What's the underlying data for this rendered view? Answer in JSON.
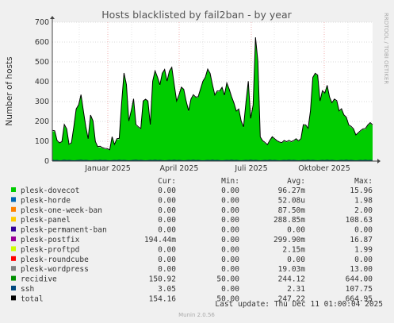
{
  "chart_data": {
    "type": "line",
    "title": "Hosts blacklisted by fail2ban - by year",
    "ylabel": "Number of hosts",
    "ylim": [
      0,
      700
    ],
    "yticks": [
      0,
      100,
      200,
      300,
      400,
      500,
      600,
      700
    ],
    "xlabels": [
      "Januar 2025",
      "April 2025",
      "Juli 2025",
      "Oktober 2025"
    ],
    "grid": true,
    "series": [
      {
        "name": "recidive",
        "color": "#00cc00",
        "fill": true,
        "values": [
          150,
          150,
          100,
          90,
          95,
          180,
          160,
          80,
          90,
          170,
          260,
          280,
          330,
          250,
          170,
          110,
          230,
          200,
          95,
          70,
          70,
          65,
          60,
          60,
          55,
          120,
          80,
          110,
          110,
          290,
          440,
          380,
          200,
          250,
          310,
          180,
          170,
          160,
          300,
          310,
          300,
          180,
          400,
          450,
          420,
          380,
          440,
          460,
          400,
          450,
          470,
          380,
          300,
          330,
          370,
          360,
          300,
          250,
          310,
          330,
          320,
          320,
          360,
          400,
          420,
          460,
          440,
          380,
          330,
          350,
          350,
          370,
          330,
          390,
          360,
          320,
          290,
          250,
          260,
          200,
          170,
          290,
          400,
          210,
          280,
          620,
          500,
          120,
          100,
          90,
          80,
          100,
          120,
          110,
          100,
          95,
          90,
          100,
          95,
          100,
          95,
          100,
          110,
          100,
          110,
          180,
          180,
          160,
          250,
          420,
          440,
          430,
          300,
          350,
          340,
          380,
          320,
          290,
          310,
          300,
          250,
          260,
          230,
          220,
          180,
          170,
          160,
          130,
          140,
          150,
          160,
          160,
          180,
          190,
          180
        ]
      },
      {
        "name": "ssh",
        "color": "#003366",
        "fill": false,
        "values": [
          5,
          3,
          4,
          2,
          3,
          5,
          3,
          4,
          3,
          2,
          3,
          4,
          5,
          3,
          4,
          3,
          2,
          3,
          4,
          3,
          5,
          3,
          4,
          3,
          2,
          3,
          4,
          3,
          5,
          3,
          4,
          3,
          2,
          3,
          4,
          5,
          3,
          4,
          3,
          2,
          3,
          4,
          3,
          5,
          3,
          4,
          3,
          2,
          3,
          4,
          3,
          5,
          3,
          4,
          3,
          2,
          3,
          4,
          3,
          5,
          3,
          4,
          3,
          2,
          3,
          4,
          3,
          5,
          3,
          4,
          3,
          2,
          3,
          4,
          3,
          5,
          3,
          4,
          3,
          2,
          3,
          4,
          3,
          5,
          3,
          4,
          3,
          2,
          3,
          4,
          3,
          5,
          3,
          4,
          3,
          2,
          3,
          4,
          3,
          5,
          3,
          4,
          3,
          2,
          3,
          4,
          3,
          5,
          3,
          4,
          3,
          2,
          3,
          4,
          3,
          5,
          3,
          4,
          3,
          2,
          3,
          4,
          3,
          5,
          3,
          4,
          3,
          2,
          3,
          4,
          3,
          5,
          3,
          4,
          3
        ]
      },
      {
        "name": "total",
        "color": "#000000",
        "fill": false,
        "values": [
          155,
          153,
          104,
          92,
          98,
          185,
          163,
          84,
          93,
          172,
          263,
          284,
          335,
          253,
          174,
          113,
          232,
          203,
          99,
          73,
          75,
          68,
          64,
          63,
          57,
          123,
          84,
          113,
          115,
          293,
          444,
          385,
          202,
          253,
          314,
          185,
          173,
          164,
          303,
          312,
          303,
          184,
          403,
          455,
          423,
          384,
          443,
          462,
          403,
          454,
          473,
          385,
          303,
          334,
          373,
          362,
          303,
          254,
          313,
          335,
          323,
          324,
          363,
          402,
          423,
          464,
          443,
          385,
          333,
          354,
          353,
          372,
          333,
          394,
          363,
          325,
          293,
          252,
          263,
          202,
          173,
          294,
          403,
          215,
          283,
          624,
          503,
          122,
          103,
          94,
          83,
          105,
          123,
          113,
          103,
          97,
          93,
          104,
          98,
          105,
          98,
          104,
          113,
          102,
          113,
          184,
          183,
          165,
          253,
          422,
          443,
          434,
          303,
          355,
          343,
          382,
          323,
          294,
          313,
          305,
          253,
          264,
          233,
          222,
          183,
          175,
          163,
          132,
          143,
          154,
          163,
          165,
          183,
          194,
          183
        ]
      }
    ]
  },
  "legend": {
    "header": {
      "cur": "Cur:",
      "min": "Min:",
      "avg": "Avg:",
      "max": "Max:"
    },
    "rows": [
      {
        "name": "plesk-dovecot",
        "color": "#00cc00",
        "cur": "0.00",
        "min": "0.00",
        "avg": "96.27m",
        "max": "15.96"
      },
      {
        "name": "plesk-horde",
        "color": "#0066b3",
        "cur": "0.00",
        "min": "0.00",
        "avg": "52.08u",
        "max": "1.98"
      },
      {
        "name": "plesk-one-week-ban",
        "color": "#ff8000",
        "cur": "0.00",
        "min": "0.00",
        "avg": "87.50m",
        "max": "2.00"
      },
      {
        "name": "plesk-panel",
        "color": "#ffcc00",
        "cur": "0.00",
        "min": "0.00",
        "avg": "288.85m",
        "max": "108.63"
      },
      {
        "name": "plesk-permanent-ban",
        "color": "#330099",
        "cur": "0.00",
        "min": "0.00",
        "avg": "0.00",
        "max": "0.00"
      },
      {
        "name": "plesk-postfix",
        "color": "#990099",
        "cur": "194.44m",
        "min": "0.00",
        "avg": "299.90m",
        "max": "16.87"
      },
      {
        "name": "plesk-proftpd",
        "color": "#ccff00",
        "cur": "0.00",
        "min": "0.00",
        "avg": "2.15m",
        "max": "1.99"
      },
      {
        "name": "plesk-roundcube",
        "color": "#ff0000",
        "cur": "0.00",
        "min": "0.00",
        "avg": "0.00",
        "max": "0.00"
      },
      {
        "name": "plesk-wordpress",
        "color": "#808080",
        "cur": "0.00",
        "min": "0.00",
        "avg": "19.03m",
        "max": "13.00"
      },
      {
        "name": "recidive",
        "color": "#008f00",
        "cur": "150.92",
        "min": "50.00",
        "avg": "244.12",
        "max": "644.00"
      },
      {
        "name": "ssh",
        "color": "#00487d",
        "cur": "3.05",
        "min": "0.00",
        "avg": "2.31",
        "max": "107.75"
      },
      {
        "name": "total",
        "color": "#000000",
        "cur": "154.16",
        "min": "50.00",
        "avg": "247.22",
        "max": "664.95"
      }
    ]
  },
  "last_update": "Last update: Thu Dec 11 01:00:04 2025",
  "side_label": "RRDTOOL / TOBI OETIKER",
  "footer": "Munin 2.0.56"
}
